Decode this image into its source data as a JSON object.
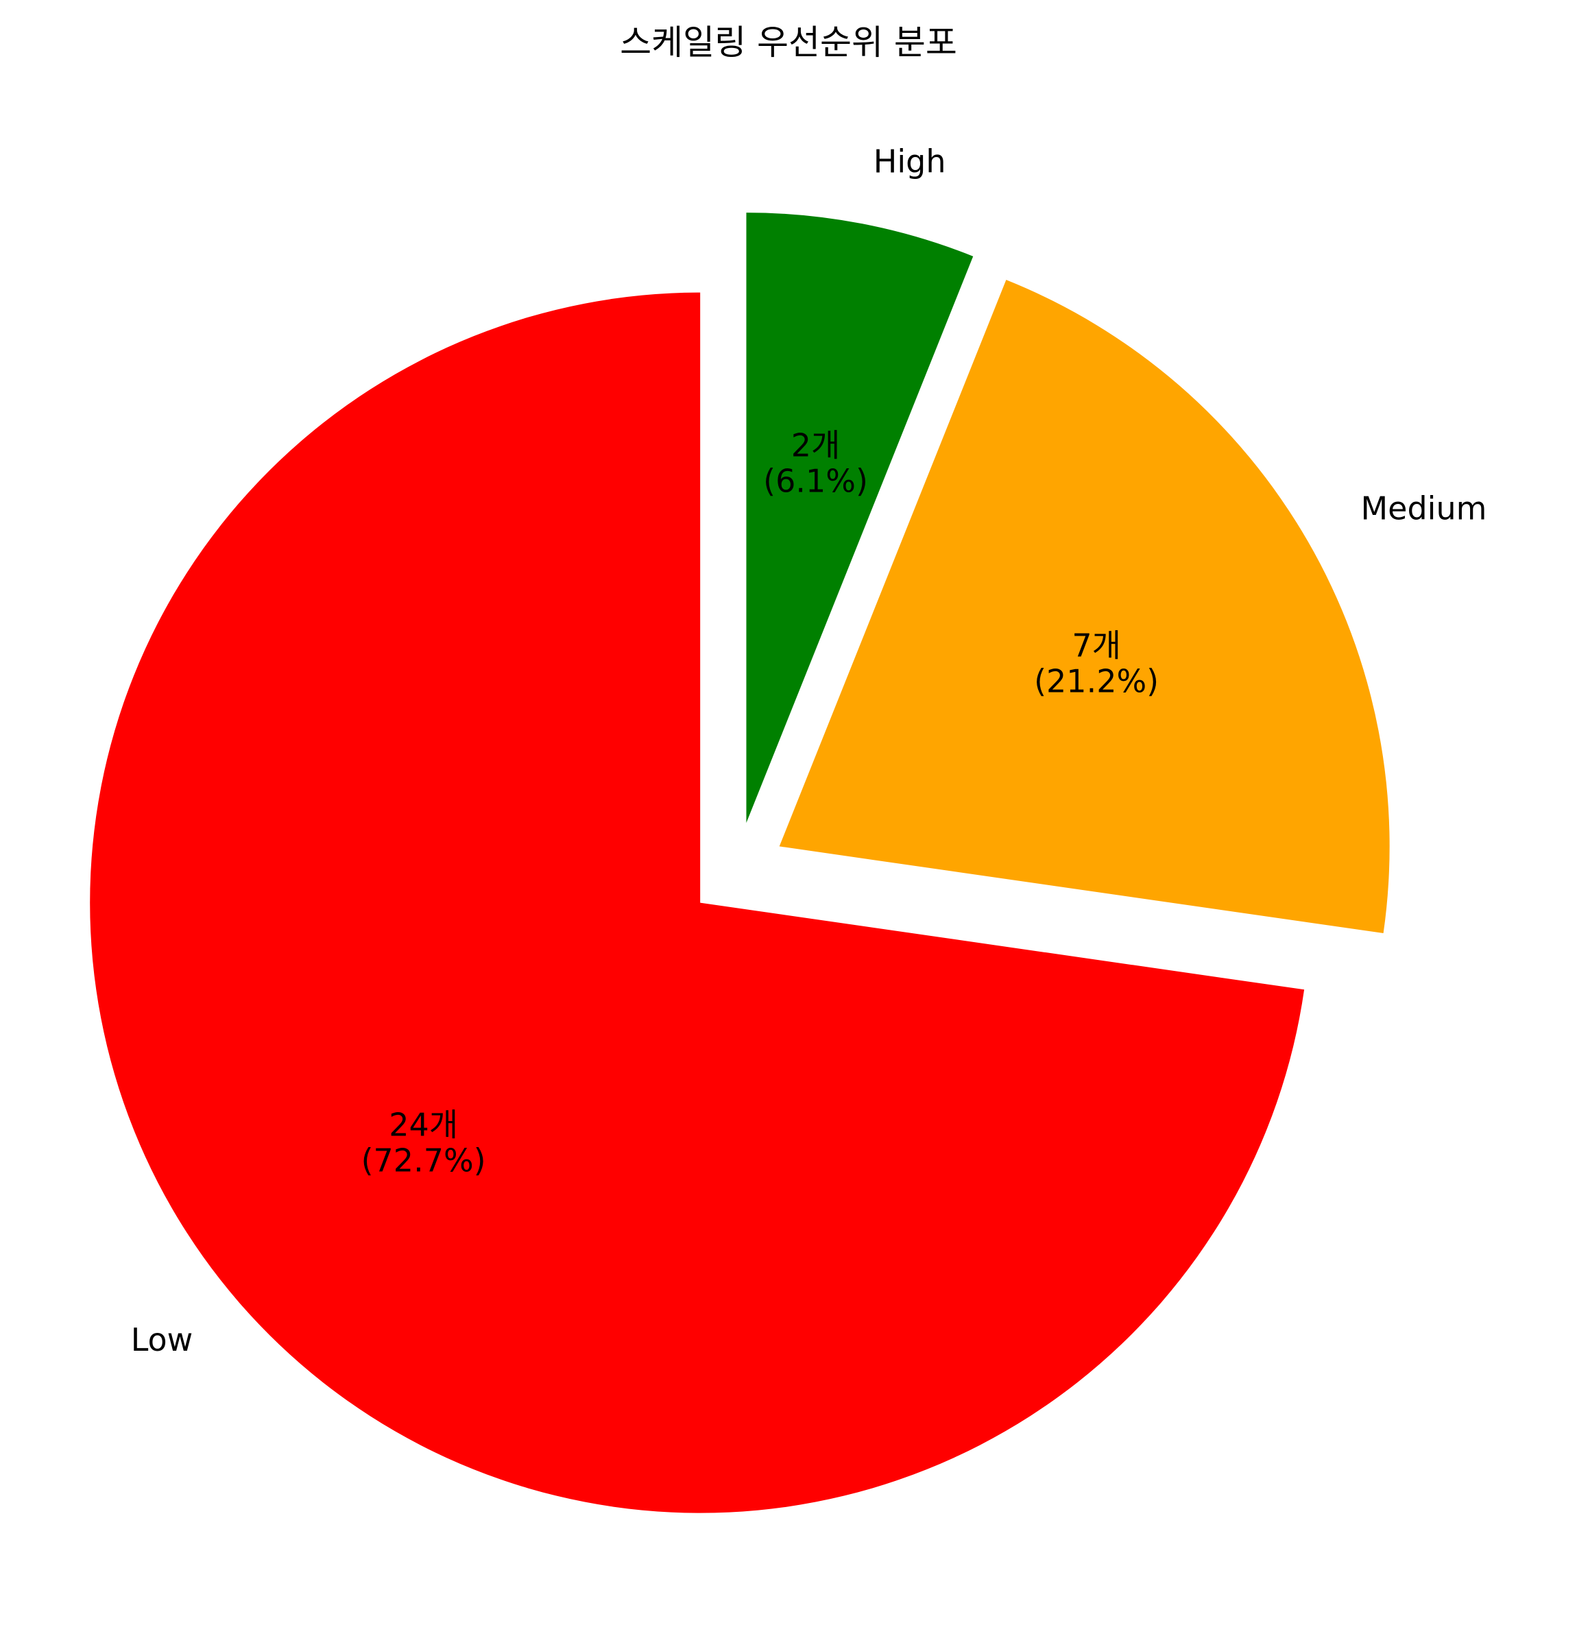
{
  "chart_data": {
    "type": "pie",
    "title": "스케일링 우선순위 분포",
    "categories": [
      "High",
      "Medium",
      "Low"
    ],
    "values": [
      2,
      7,
      24
    ],
    "percent_labels": [
      "2개\n(6.1%)",
      "7개\n(21.2%)",
      "24개\n(72.7%)"
    ],
    "colors": [
      "#008000",
      "#ffa500",
      "#ff0000"
    ],
    "exploded": true,
    "start_angle_deg": 90,
    "direction": "clockwise"
  }
}
